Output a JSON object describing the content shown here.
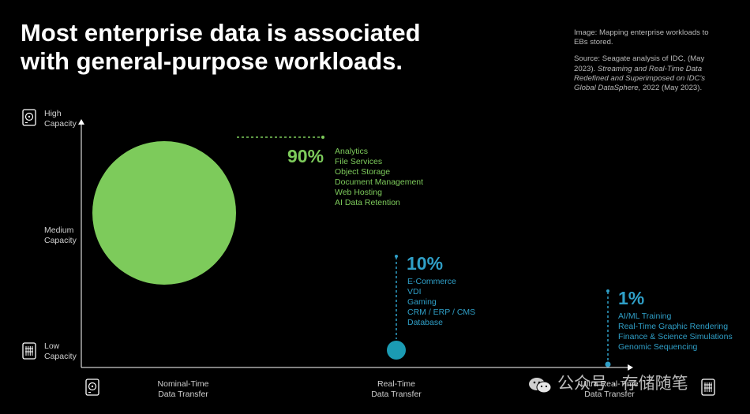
{
  "header": {
    "title_line1": "Most enterprise data is associated",
    "title_line2": "with general-purpose workloads."
  },
  "source_note": {
    "image": "Image: Mapping enterprise workloads to EBs stored.",
    "source_prefix": "Source: Seagate analysis of IDC, (May 2023).",
    "source_italic": "Streaming and Real-Time Data Redefined and Superimposed on IDC's Global DataSphere,",
    "source_suffix": "2022 (May 2023)."
  },
  "axes": {
    "y": {
      "high_line1": "High",
      "high_line2": "Capacity",
      "medium_line1": "Medium",
      "medium_line2": "Capacity",
      "low_line1": "Low",
      "low_line2": "Capacity"
    },
    "x": {
      "nominal_line1": "Nominal-Time",
      "nominal_line2": "Data Transfer",
      "realtime_line1": "Real-Time",
      "realtime_line2": "Data Transfer",
      "ultra_line1": "Ultra Real-Time",
      "ultra_line2": "Data Transfer"
    }
  },
  "chart_data": {
    "type": "scatter",
    "title": "Most enterprise data is associated with general-purpose workloads.",
    "xlabel": "",
    "ylabel": "",
    "x_categories": [
      "Nominal-Time Data Transfer",
      "Real-Time Data Transfer",
      "Ultra Real-Time Data Transfer"
    ],
    "y_categories": [
      "Low Capacity",
      "Medium Capacity",
      "High Capacity"
    ],
    "series": [
      {
        "label": "90%",
        "share_percent": 90,
        "x": "Nominal-Time Data Transfer",
        "y": "Medium Capacity",
        "color": "#7dcb5b",
        "workloads": [
          "Analytics",
          "File Services",
          "Object Storage",
          "Document Management",
          "Web Hosting",
          "AI Data Retention"
        ]
      },
      {
        "label": "10%",
        "share_percent": 10,
        "x": "Real-Time Data Transfer",
        "y": "Low Capacity",
        "color": "#2f9fc7",
        "workloads": [
          "E-Commerce",
          "VDI",
          "Gaming",
          "CRM / ERP / CMS",
          "Database"
        ]
      },
      {
        "label": "1%",
        "share_percent": 1,
        "x": "Ultra Real-Time Data Transfer",
        "y": "Low Capacity",
        "color": "#2f9fc7",
        "workloads": [
          "AI/ML Training",
          "Real-Time Graphic Rendering",
          "Finance & Science Simulations",
          "Genomic Sequencing"
        ]
      }
    ]
  },
  "icons": {
    "y_top": "hard-drive-icon",
    "y_bottom": "ssd-chip-icon",
    "x_left": "hard-drive-icon",
    "x_right": "ssd-chip-icon"
  },
  "watermark": {
    "text": "公众号 · 存储随笔",
    "icon": "wechat-icon"
  }
}
